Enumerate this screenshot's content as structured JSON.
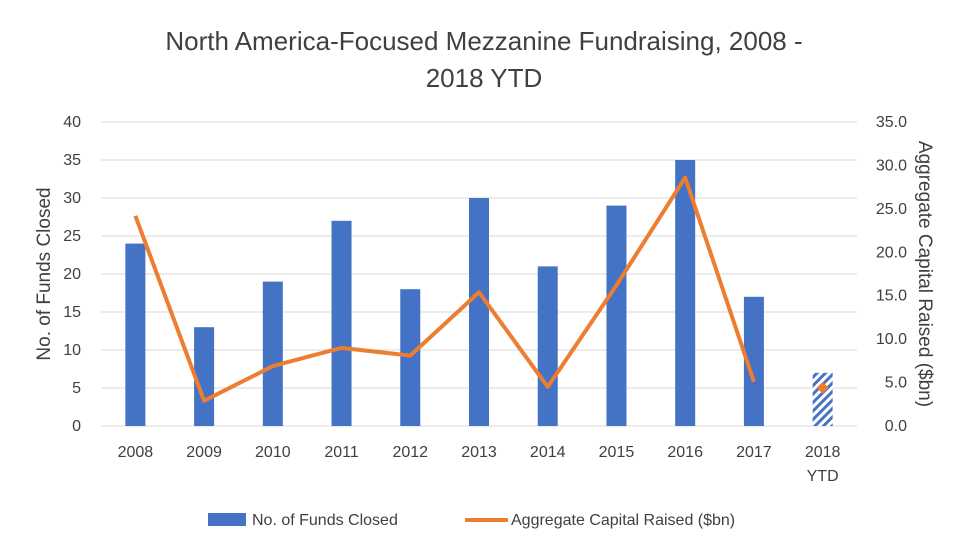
{
  "chart_data": {
    "type": "bar",
    "title_lines": [
      "North America-Focused Mezzanine Fundraising, 2008 -",
      "2018 YTD"
    ],
    "categories": [
      [
        "2008"
      ],
      [
        "2009"
      ],
      [
        "2010"
      ],
      [
        "2011"
      ],
      [
        "2012"
      ],
      [
        "2013"
      ],
      [
        "2014"
      ],
      [
        "2015"
      ],
      [
        "2016"
      ],
      [
        "2017"
      ],
      [
        "2018",
        "YTD"
      ]
    ],
    "ylabel": "No. of Funds Closed",
    "y2label": "Aggregate Capital Raised ($bn)",
    "ylim": [
      0,
      40
    ],
    "y2lim": [
      0,
      35
    ],
    "yticks": [
      "0",
      "5",
      "10",
      "15",
      "20",
      "25",
      "30",
      "35",
      "40"
    ],
    "y2ticks": [
      "0.0",
      "5.0",
      "10.0",
      "15.0",
      "20.0",
      "25.0",
      "30.0",
      "35.0"
    ],
    "grid": true,
    "legend_position": "bottom",
    "series": [
      {
        "name": "No. of Funds Closed",
        "kind": "bar",
        "axis": "left",
        "color": "#4472C4",
        "values": [
          24,
          13,
          19,
          27,
          18,
          30,
          21,
          29,
          35,
          17,
          7
        ],
        "hatched_last": true
      },
      {
        "name": "Aggregate Capital Raised ($bn)",
        "kind": "line",
        "axis": "right",
        "color": "#ED7D31",
        "values": [
          24.2,
          2.9,
          6.9,
          9.0,
          8.1,
          15.4,
          4.5,
          16.2,
          28.6,
          5.1,
          4.4
        ],
        "last_as_marker": true
      }
    ]
  }
}
